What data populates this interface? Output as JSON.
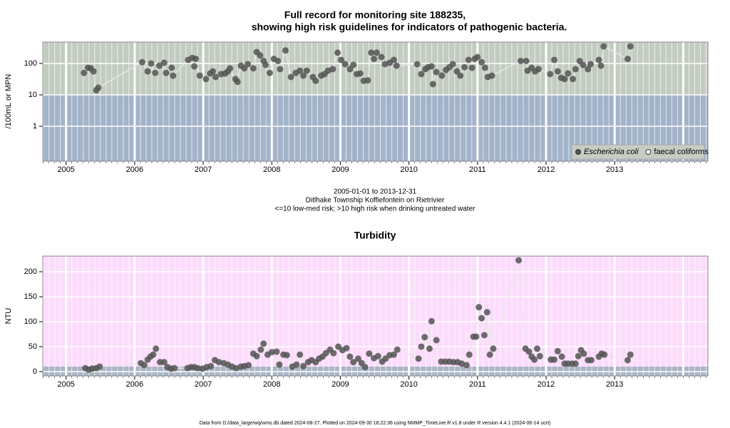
{
  "chart_data": [
    {
      "type": "scatter",
      "title": [
        "Full record for monitoring site 188235,",
        "showing high risk guidelines for indicators of pathogenic bacteria."
      ],
      "ylabel": "/100mL or MPN",
      "log_scale": true,
      "threshold": 10,
      "legend": "bottom-right",
      "notes": [
        "2005-01-01 to 2013-12-31",
        "Ditlhake Township Koffiefontein on Rietrivier",
        "<=10 low-med risk; >10 high risk when drinking untreated water"
      ],
      "xlim": [
        2004.66,
        2014.36
      ],
      "xticks": [
        2005,
        2006,
        2007,
        2008,
        2009,
        2010,
        2011,
        2012,
        2013
      ],
      "ylim": [
        0.077,
        480
      ],
      "yticks": [
        1,
        10,
        100
      ],
      "series": [
        {
          "name": "Escherichia coli",
          "color": "#555555",
          "marker": "filled",
          "x": [
            2005.26,
            2005.32,
            2005.36,
            2005.4,
            2005.44,
            2005.47,
            2006.11,
            2006.19,
            2006.24,
            2006.3,
            2006.36,
            2006.43,
            2006.46,
            2006.54,
            2006.56,
            2006.78,
            2006.84,
            2006.87,
            2006.89,
            2006.95,
            2007.04,
            2007.1,
            2007.14,
            2007.18,
            2007.26,
            2007.32,
            2007.36,
            2007.39,
            2007.47,
            2007.5,
            2007.55,
            2007.6,
            2007.65,
            2007.73,
            2007.78,
            2007.83,
            2007.88,
            2007.91,
            2007.97,
            2008.03,
            2008.09,
            2008.12,
            2008.2,
            2008.28,
            2008.35,
            2008.41,
            2008.46,
            2008.51,
            2008.6,
            2008.64,
            2008.72,
            2008.77,
            2008.82,
            2008.89,
            2008.96,
            2009.01,
            2009.07,
            2009.14,
            2009.19,
            2009.24,
            2009.29,
            2009.34,
            2009.4,
            2009.45,
            2009.49,
            2009.53,
            2009.6,
            2009.65,
            2009.72,
            2009.78,
            2009.82,
            2010.12,
            2010.18,
            2010.24,
            2010.28,
            2010.33,
            2010.35,
            2010.4,
            2010.48,
            2010.54,
            2010.59,
            2010.64,
            2010.7,
            2010.75,
            2010.81,
            2010.87,
            2010.92,
            2010.96,
            2011.0,
            2011.06,
            2011.11,
            2011.15,
            2011.21,
            2011.63,
            2011.71,
            2011.73,
            2011.79,
            2011.84,
            2011.89,
            2012.06,
            2012.12,
            2012.17,
            2012.22,
            2012.27,
            2012.32,
            2012.39,
            2012.43,
            2012.49,
            2012.54,
            2012.61,
            2012.65,
            2012.77,
            2012.8,
            2012.84,
            2013.19,
            2013.23
          ],
          "values": [
            50,
            73,
            70,
            56,
            14,
            17,
            110,
            56,
            100,
            50,
            85,
            105,
            50,
            73,
            41,
            130,
            150,
            81,
            140,
            41,
            32,
            48,
            56,
            37,
            46,
            48,
            56,
            70,
            32,
            26,
            85,
            70,
            95,
            70,
            230,
            180,
            120,
            90,
            50,
            140,
            120,
            66,
            260,
            37,
            50,
            59,
            41,
            59,
            37,
            28,
            41,
            46,
            59,
            66,
            220,
            130,
            95,
            66,
            90,
            46,
            48,
            28,
            29,
            220,
            140,
            220,
            160,
            95,
            105,
            130,
            85,
            95,
            46,
            66,
            76,
            81,
            22,
            53,
            41,
            62,
            76,
            95,
            56,
            41,
            76,
            130,
            73,
            140,
            160,
            110,
            73,
            37,
            41,
            120,
            120,
            59,
            73,
            56,
            66,
            46,
            130,
            56,
            35,
            32,
            48,
            32,
            66,
            120,
            90,
            66,
            95,
            130,
            85,
            350,
            140,
            350
          ]
        },
        {
          "name": "faecal coliforms",
          "color": "#555555",
          "marker": "open",
          "x": [],
          "values": []
        }
      ]
    },
    {
      "type": "scatter",
      "title": "Turbidity",
      "ylabel": "NTU",
      "log_scale": false,
      "threshold": 10,
      "xlim": [
        2004.66,
        2014.36
      ],
      "xticks": [
        2005,
        2006,
        2007,
        2008,
        2009,
        2010,
        2011,
        2012,
        2013
      ],
      "ylim": [
        -8.6,
        231.4
      ],
      "yticks": [
        0,
        50,
        100,
        150,
        200
      ],
      "series": [
        {
          "name": "Turbidity",
          "color": "#555555",
          "marker": "filled",
          "x": [
            2005.28,
            2005.33,
            2005.38,
            2005.44,
            2005.49,
            2006.09,
            2006.14,
            2006.19,
            2006.23,
            2006.27,
            2006.31,
            2006.37,
            2006.43,
            2006.48,
            2006.53,
            2006.58,
            2006.77,
            2006.82,
            2006.87,
            2006.92,
            2006.99,
            2007.05,
            2007.11,
            2007.17,
            2007.23,
            2007.3,
            2007.36,
            2007.42,
            2007.48,
            2007.55,
            2007.6,
            2007.66,
            2007.73,
            2007.78,
            2007.84,
            2007.88,
            2007.94,
            2008.0,
            2008.07,
            2008.11,
            2008.17,
            2008.22,
            2008.3,
            2008.36,
            2008.41,
            2008.46,
            2008.53,
            2008.58,
            2008.64,
            2008.69,
            2008.74,
            2008.79,
            2008.85,
            2008.9,
            2008.97,
            2009.03,
            2009.09,
            2009.14,
            2009.19,
            2009.26,
            2009.31,
            2009.36,
            2009.42,
            2009.49,
            2009.55,
            2009.61,
            2009.66,
            2009.72,
            2009.78,
            2009.83,
            2010.14,
            2010.18,
            2010.23,
            2010.3,
            2010.33,
            2010.4,
            2010.47,
            2010.53,
            2010.59,
            2010.65,
            2010.71,
            2010.77,
            2010.84,
            2010.88,
            2010.94,
            2010.98,
            2011.02,
            2011.06,
            2011.1,
            2011.14,
            2011.18,
            2011.23,
            2011.6,
            2011.7,
            2011.75,
            2011.79,
            2011.83,
            2011.87,
            2011.91,
            2012.07,
            2012.12,
            2012.17,
            2012.23,
            2012.27,
            2012.32,
            2012.38,
            2012.43,
            2012.47,
            2012.51,
            2012.55,
            2012.61,
            2012.66,
            2012.77,
            2012.81,
            2012.85,
            2013.19,
            2013.23
          ],
          "values": [
            7,
            4,
            6,
            7,
            10,
            17,
            13,
            24,
            30,
            34,
            46,
            19,
            19,
            9,
            6,
            7,
            7,
            9,
            9,
            7,
            6,
            9,
            11,
            23,
            19,
            17,
            14,
            10,
            7,
            10,
            11,
            13,
            36,
            31,
            44,
            56,
            34,
            39,
            40,
            14,
            34,
            33,
            10,
            14,
            34,
            11,
            19,
            23,
            19,
            26,
            30,
            37,
            44,
            37,
            50,
            43,
            47,
            30,
            19,
            26,
            17,
            9,
            36,
            27,
            31,
            20,
            26,
            33,
            34,
            44,
            26,
            50,
            69,
            46,
            101,
            63,
            20,
            20,
            20,
            19,
            19,
            16,
            13,
            34,
            70,
            70,
            129,
            107,
            73,
            119,
            34,
            46,
            223,
            46,
            40,
            30,
            24,
            46,
            31,
            24,
            24,
            41,
            30,
            16,
            16,
            16,
            16,
            31,
            43,
            36,
            23,
            23,
            30,
            36,
            34,
            23,
            34
          ]
        }
      ]
    }
  ],
  "footer": "Data from D:/data_large/wq/wms.db dated 2024-08-27. Plotted on 2024-09-30 18:22:36 using NMMP_TimeLine.R v1.8 under R version 4.4.1 (2024-06-14 ucrt)"
}
